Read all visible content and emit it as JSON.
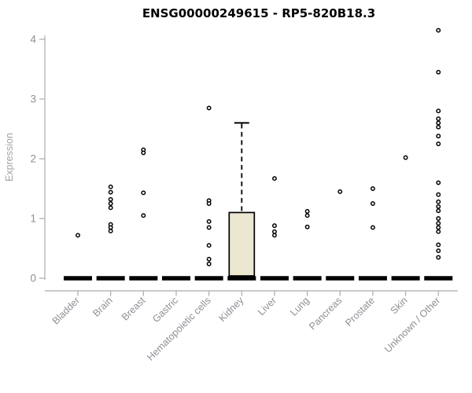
{
  "chart_data": {
    "type": "boxplot",
    "title": "ENSG00000249615 - RP5-820B18.3",
    "ylabel": "Expression",
    "ylim": [
      0,
      4.3
    ],
    "yticks": [
      0,
      1,
      2,
      3,
      4
    ],
    "grid": false,
    "legend": null,
    "categories": [
      "Bladder",
      "Brain",
      "Breast",
      "Gastric",
      "Hematopoietic cells",
      "Kidney",
      "Liver",
      "Lung",
      "Pancreas",
      "Prostate",
      "Skin",
      "Unknown / Other"
    ],
    "series": [
      {
        "category": "Bladder",
        "q1": 0,
        "median": 0,
        "q3": 0,
        "whisker_low": 0,
        "whisker_high": 0,
        "outliers": [
          0.72
        ]
      },
      {
        "category": "Brain",
        "q1": 0,
        "median": 0,
        "q3": 0,
        "whisker_low": 0,
        "whisker_high": 0,
        "outliers": [
          1.53,
          1.44,
          1.32,
          1.25,
          1.18,
          0.9,
          0.85,
          0.79
        ]
      },
      {
        "category": "Breast",
        "q1": 0,
        "median": 0,
        "q3": 0,
        "whisker_low": 0,
        "whisker_high": 0,
        "outliers": [
          2.15,
          2.1,
          1.43,
          1.05
        ]
      },
      {
        "category": "Gastric",
        "q1": 0,
        "median": 0,
        "q3": 0,
        "whisker_low": 0,
        "whisker_high": 0,
        "outliers": []
      },
      {
        "category": "Hematopoietic cells",
        "q1": 0,
        "median": 0,
        "q3": 0,
        "whisker_low": 0,
        "whisker_high": 0,
        "outliers": [
          2.85,
          1.3,
          1.25,
          0.95,
          0.85,
          0.55,
          0.32,
          0.24
        ]
      },
      {
        "category": "Kidney",
        "q1": 0,
        "median": 0,
        "q3": 1.1,
        "whisker_low": 0,
        "whisker_high": 2.6,
        "outliers": []
      },
      {
        "category": "Liver",
        "q1": 0,
        "median": 0,
        "q3": 0,
        "whisker_low": 0,
        "whisker_high": 0,
        "outliers": [
          1.67,
          0.88,
          0.78,
          0.72
        ]
      },
      {
        "category": "Lung",
        "q1": 0,
        "median": 0,
        "q3": 0,
        "whisker_low": 0,
        "whisker_high": 0,
        "outliers": [
          1.12,
          1.05,
          0.86
        ]
      },
      {
        "category": "Pancreas",
        "q1": 0,
        "median": 0,
        "q3": 0,
        "whisker_low": 0,
        "whisker_high": 0,
        "outliers": [
          1.45
        ]
      },
      {
        "category": "Prostate",
        "q1": 0,
        "median": 0,
        "q3": 0,
        "whisker_low": 0,
        "whisker_high": 0,
        "outliers": [
          1.5,
          1.25,
          0.85
        ]
      },
      {
        "category": "Skin",
        "q1": 0,
        "median": 0,
        "q3": 0,
        "whisker_low": 0,
        "whisker_high": 0,
        "outliers": [
          2.02
        ]
      },
      {
        "category": "Unknown / Other",
        "q1": 0,
        "median": 0,
        "q3": 0,
        "whisker_low": 0,
        "whisker_high": 0,
        "outliers": [
          4.15,
          3.45,
          2.8,
          2.67,
          2.6,
          2.53,
          2.38,
          2.25,
          1.6,
          1.4,
          1.28,
          1.2,
          1.13,
          1.0,
          0.92,
          0.85,
          0.78,
          0.56,
          0.46,
          0.35
        ]
      }
    ],
    "colors": {
      "title": "#000000",
      "ylabel_text": "#a3a3a3",
      "axis": "#ababab",
      "tick_label": "#8f8f96",
      "box_fill": "#ece7d0",
      "box_border": "#000000",
      "median_bar": "#000000",
      "outlier": "#000000",
      "outlier_fill": "#ffffff"
    }
  }
}
